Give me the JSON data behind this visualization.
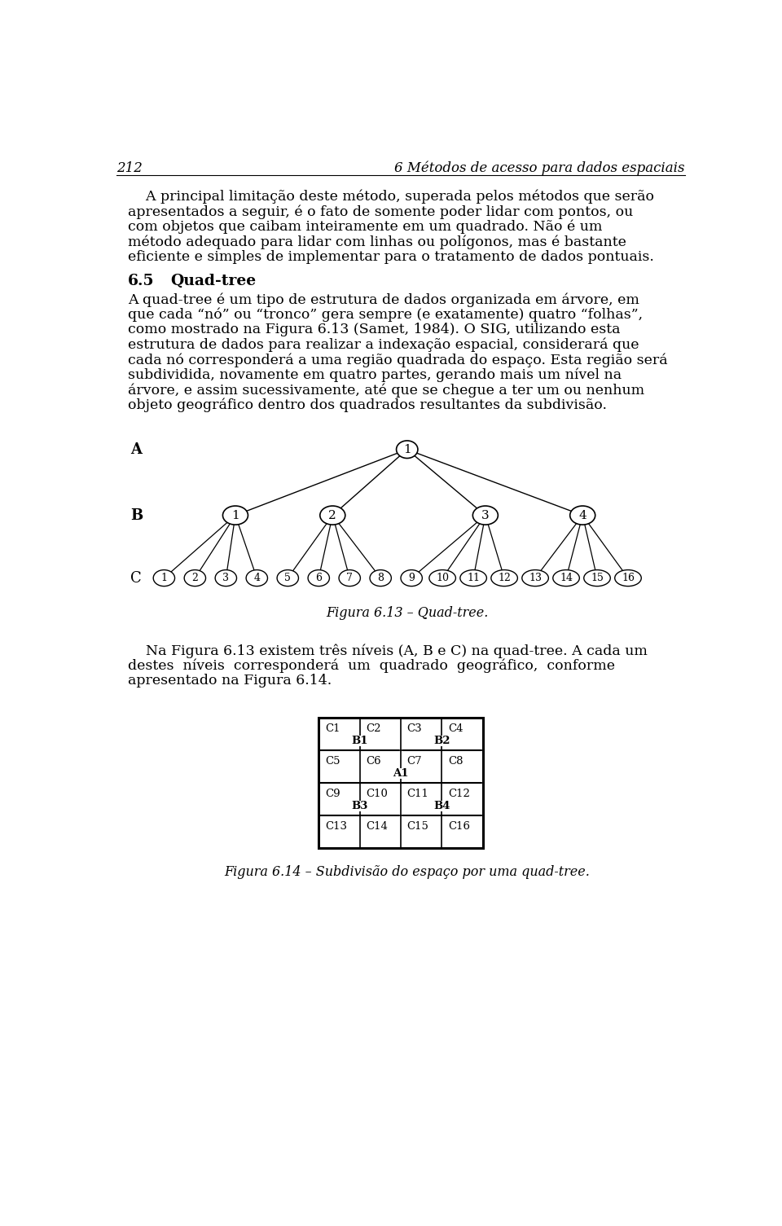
{
  "bg_color": "#ffffff",
  "page_number": "212",
  "header_right": "6 Métodos de acesso para dados espaciais",
  "section_num": "6.5",
  "section_title": "Quad-tree",
  "fig1_caption": "Figura 6.13 – Quad-tree.",
  "fig2_caption": "Figura 6.14 – Subdivisão do espaço por uma quad-tree.",
  "para1_lines": [
    "    A principal limitação deste método, superada pelos métodos que serão",
    "apresentados a seguir, é o fato de somente poder lidar com pontos, ou",
    "com objetos que caibam inteiramente em um quadrado. Não é um",
    "método adequado para lidar com linhas ou polígonos, mas é bastante",
    "eficiente e simples de implementar para o tratamento de dados pontuais."
  ],
  "para2_lines": [
    "A quad-tree é um tipo de estrutura de dados organizada em árvore, em",
    "que cada “nó” ou “tronco” gera sempre (e exatamente) quatro “folhas”,",
    "como mostrado na Figura 6.13 (Samet, 1984). O SIG, utilizando esta",
    "estrutura de dados para realizar a indexação espacial, considerará que",
    "cada nó corresponderá a uma região quadrada do espaço. Esta região será",
    "subdividida, novamente em quatro partes, gerando mais um nível na",
    "árvore, e assim sucessivamente, até que se chegue a ter um ou nenhum",
    "objeto geográfico dentro dos quadrados resultantes da subdivisão."
  ],
  "para3_lines": [
    "    Na Figura 6.13 existem três níveis (A, B e C) na quad-tree. A cada um",
    "destes  níveis  corresponderá  um  quadrado  geográfico,  conforme",
    "apresentado na Figura 6.14."
  ],
  "tree_level_b": [
    "1",
    "2",
    "3",
    "4"
  ],
  "tree_level_c": [
    "1",
    "2",
    "3",
    "4",
    "5",
    "6",
    "7",
    "8",
    "9",
    "10",
    "11",
    "12",
    "13",
    "14",
    "15",
    "16"
  ],
  "grid_cells": [
    [
      "C1",
      "C2",
      "C3",
      "C4"
    ],
    [
      "C5",
      "C6",
      "C7",
      "C8"
    ],
    [
      "C9",
      "C10",
      "C11",
      "C12"
    ],
    [
      "C13",
      "C14",
      "C15",
      "C16"
    ]
  ],
  "text_color": "#000000",
  "font_family": "serif"
}
